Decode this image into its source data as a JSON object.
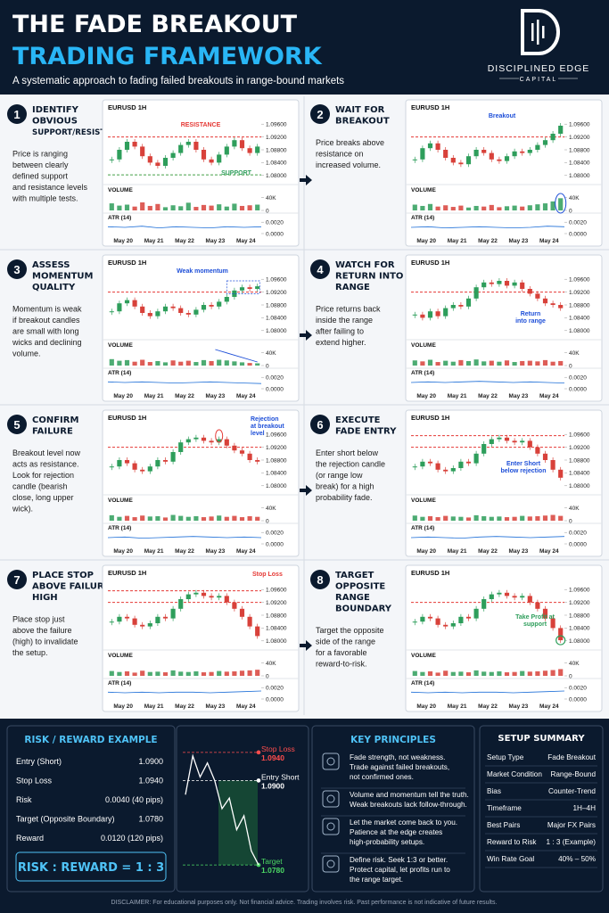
{
  "header": {
    "title_line1": "THE FADE BREAKOUT",
    "title_line2": "TRADING FRAMEWORK",
    "subtitle": "A systematic approach to fading failed breakouts in range-bound markets",
    "logo_name": "DISCIPLINED EDGE",
    "logo_sub": "CAPITAL"
  },
  "chart_axes": {
    "symbol": "EURUSD 1H",
    "price_ylim": [
      1.078,
      1.098
    ],
    "price_ticks": [
      {
        "value": 1.096,
        "label": "1.09600"
      },
      {
        "value": 1.092,
        "label": "1.09200"
      },
      {
        "value": 1.088,
        "label": "1.08800"
      },
      {
        "value": 1.084,
        "label": "1.08400"
      },
      {
        "value": 1.08,
        "label": "1.08000"
      }
    ],
    "volume_label": "VOLUME",
    "volume_ylim": [
      0,
      50000
    ],
    "volume_ticks": [
      {
        "value": 40000,
        "label": "40K"
      },
      0
    ],
    "atr_label": "ATR (14)",
    "atr_ylim": [
      0,
      0.0025
    ],
    "atr_ticks": [
      {
        "value": 0.002,
        "label": "0.0020"
      },
      {
        "value": 0,
        "label": "0.0000"
      }
    ],
    "x_labels": [
      "May 20",
      "May 21",
      "May 22",
      "May 23",
      "May 24"
    ],
    "up_color": "#2e9e5b",
    "down_color": "#d8413a"
  },
  "steps": [
    {
      "number": 1,
      "title": [
        "IDENTIFY",
        "OBVIOUS",
        "SUPPORT/RESISTANCE"
      ],
      "text": [
        "Price is ranging",
        "between clearly",
        "defined support",
        "and resistance levels",
        "with multiple tests."
      ],
      "chart": {
        "type": "candlestick",
        "closes": [
          1.085,
          1.088,
          1.0905,
          1.089,
          1.086,
          1.084,
          1.083,
          1.0855,
          1.087,
          1.0895,
          1.0905,
          1.088,
          1.085,
          1.084,
          1.0865,
          1.089,
          1.091,
          1.0885,
          1.087,
          1.089
        ],
        "volume": [
          22000,
          15000,
          18000,
          12000,
          25000,
          14000,
          20000,
          10000,
          16000,
          13000,
          24000,
          11000,
          17000,
          15000,
          19000,
          12000,
          21000,
          14000,
          16000,
          18000
        ],
        "atr": [
          0.0012,
          0.0011,
          0.0013,
          0.001,
          0.0012,
          0.0011,
          0.001,
          0.0012,
          0.0011,
          0.0012
        ],
        "levels": [
          {
            "value": 1.092,
            "color": "#e53935"
          },
          {
            "value": 1.0802,
            "color": "#43a047"
          }
        ],
        "annotations": [
          {
            "text": [
              "RESISTANCE"
            ],
            "color": "#e53935"
          },
          {
            "text": [
              "SUPPORT"
            ],
            "color": "#2e9e5b"
          }
        ]
      }
    },
    {
      "number": 2,
      "title": [
        "WAIT FOR",
        "BREAKOUT"
      ],
      "text": [
        "Price breaks above",
        "resistance on",
        "increased volume."
      ],
      "chart": {
        "type": "candlestick",
        "closes": [
          1.085,
          1.0885,
          1.09,
          1.088,
          1.0855,
          1.084,
          1.0835,
          1.086,
          1.088,
          1.087,
          1.085,
          1.0845,
          1.086,
          1.0875,
          1.087,
          1.088,
          1.0895,
          1.091,
          1.093,
          1.0955
        ],
        "volume": [
          18000,
          14000,
          20000,
          12000,
          16000,
          11000,
          15000,
          9000,
          14000,
          12000,
          17000,
          10000,
          13000,
          15000,
          12000,
          16000,
          19000,
          22000,
          28000,
          38000
        ],
        "atr": [
          0.0011,
          0.0012,
          0.001,
          0.0011,
          0.0012,
          0.0011,
          0.001,
          0.0011,
          0.0013,
          0.0012
        ],
        "levels": [
          {
            "value": 1.092,
            "color": "#e53935"
          }
        ],
        "annotations": [
          {
            "text": [
              "Breakout"
            ],
            "color": "#1e4fd8"
          }
        ]
      }
    },
    {
      "number": 3,
      "title": [
        "ASSESS",
        "MOMENTUM",
        "QUALITY"
      ],
      "text": [
        "Momentum is weak",
        "if breakout candles",
        "are small with long",
        "wicks and declining",
        "volume."
      ],
      "chart": {
        "type": "candlestick",
        "closes": [
          1.086,
          1.0885,
          1.0895,
          1.0875,
          1.0855,
          1.0845,
          1.086,
          1.0875,
          1.087,
          1.0855,
          1.085,
          1.0865,
          1.088,
          1.0875,
          1.089,
          1.0905,
          1.0925,
          1.0935,
          1.093,
          1.0938
        ],
        "volume": [
          20000,
          15000,
          17000,
          12000,
          18000,
          11000,
          14000,
          10000,
          16000,
          12000,
          15000,
          11000,
          17000,
          14000,
          18000,
          16000,
          13000,
          10000,
          8000,
          7000
        ],
        "atr": [
          0.0012,
          0.0011,
          0.0012,
          0.0011,
          0.001,
          0.0011,
          0.0012,
          0.0011,
          0.001,
          0.0009
        ],
        "levels": [
          {
            "value": 1.092,
            "color": "#e53935"
          }
        ],
        "annotations": [
          {
            "text": [
              "Weak momentum"
            ],
            "color": "#1e4fd8"
          }
        ]
      }
    },
    {
      "number": 4,
      "title": [
        "WATCH FOR",
        "RETURN INTO",
        "RANGE"
      ],
      "text": [
        "Price returns back",
        "inside the range",
        "after failing to",
        "extend higher."
      ],
      "chart": {
        "type": "candlestick",
        "closes": [
          1.085,
          1.084,
          1.086,
          1.0845,
          1.087,
          1.088,
          1.0875,
          1.09,
          1.0935,
          1.095,
          1.0945,
          1.0955,
          1.094,
          1.095,
          1.093,
          1.0915,
          1.09,
          1.0885,
          1.088,
          1.087
        ],
        "volume": [
          16000,
          13000,
          18000,
          11000,
          15000,
          12000,
          17000,
          14000,
          19000,
          13000,
          15000,
          12000,
          16000,
          11000,
          14000,
          15000,
          13000,
          17000,
          12000,
          14000
        ],
        "atr": [
          0.0011,
          0.0012,
          0.0011,
          0.0012,
          0.0013,
          0.0012,
          0.0011,
          0.0012,
          0.0011,
          0.001
        ],
        "levels": [
          {
            "value": 1.092,
            "color": "#e53935"
          }
        ],
        "annotations": [
          {
            "text": [
              "Return",
              "into range"
            ],
            "color": "#1e4fd8"
          }
        ]
      }
    },
    {
      "number": 5,
      "title": [
        "CONFIRM",
        "FAILURE"
      ],
      "text": [
        "Breakout level now",
        "acts as resistance.",
        "Look for rejection",
        "candle (bearish",
        "close, long upper",
        "wick)."
      ],
      "chart": {
        "type": "candlestick",
        "closes": [
          1.086,
          1.088,
          1.087,
          1.085,
          1.0845,
          1.086,
          1.088,
          1.0875,
          1.0905,
          1.0935,
          1.0945,
          1.095,
          1.094,
          1.0935,
          1.0945,
          1.0925,
          1.091,
          1.09,
          1.088,
          1.0875
        ],
        "volume": [
          17000,
          12000,
          15000,
          11000,
          16000,
          13000,
          14000,
          10000,
          18000,
          15000,
          12000,
          14000,
          11000,
          13000,
          16000,
          12000,
          15000,
          11000,
          14000,
          12000
        ],
        "atr": [
          0.0011,
          0.0012,
          0.001,
          0.0011,
          0.0012,
          0.0013,
          0.0012,
          0.0011,
          0.0012,
          0.0011
        ],
        "levels": [
          {
            "value": 1.092,
            "color": "#e53935"
          }
        ],
        "annotations": [
          {
            "text": [
              "Rejection",
              "at breakout",
              "level"
            ],
            "color": "#1e4fd8"
          }
        ]
      }
    },
    {
      "number": 6,
      "title": [
        "EXECUTE",
        "FADE ENTRY"
      ],
      "text": [
        "Enter short below",
        "the rejection candle",
        "(or range low",
        "break) for a high",
        "probability fade."
      ],
      "chart": {
        "type": "candlestick",
        "closes": [
          1.086,
          1.0875,
          1.087,
          1.085,
          1.0845,
          1.0855,
          1.0875,
          1.087,
          1.09,
          1.093,
          1.0945,
          1.095,
          1.094,
          1.0935,
          1.094,
          1.092,
          1.09,
          1.088,
          1.085,
          1.0825
        ],
        "volume": [
          16000,
          12000,
          14000,
          11000,
          15000,
          13000,
          12000,
          10000,
          17000,
          14000,
          12000,
          13000,
          11000,
          12000,
          15000,
          13000,
          14000,
          16000,
          18000,
          15000
        ],
        "atr": [
          0.0011,
          0.0012,
          0.0011,
          0.001,
          0.0012,
          0.0013,
          0.0012,
          0.0011,
          0.0012,
          0.0013
        ],
        "levels": [
          {
            "value": 1.092,
            "color": "#e53935"
          },
          {
            "value": 1.0956,
            "color": "#e53935"
          }
        ],
        "annotations": [
          {
            "text": [
              "Enter Short",
              "below rejection"
            ],
            "color": "#1e4fd8"
          }
        ]
      }
    },
    {
      "number": 7,
      "title": [
        "PLACE STOP",
        "ABOVE FAILURE",
        "HIGH"
      ],
      "text": [
        "Place stop just",
        "above the failure",
        "(high) to invalidate",
        "the setup."
      ],
      "chart": {
        "type": "candlestick",
        "closes": [
          1.086,
          1.0875,
          1.087,
          1.085,
          1.0845,
          1.0855,
          1.0875,
          1.087,
          1.09,
          1.093,
          1.0945,
          1.095,
          1.094,
          1.0935,
          1.094,
          1.092,
          1.09,
          1.0875,
          1.0845,
          1.0815
        ],
        "volume": [
          15000,
          12000,
          14000,
          10000,
          16000,
          12000,
          13000,
          11000,
          17000,
          13000,
          12000,
          14000,
          11000,
          12000,
          15000,
          13000,
          14000,
          16000,
          17000,
          19000
        ],
        "atr": [
          0.0012,
          0.0011,
          0.0012,
          0.0011,
          0.0012,
          0.0012,
          0.0011,
          0.0012,
          0.0013,
          0.0014
        ],
        "levels": [
          {
            "value": 1.092,
            "color": "#e53935"
          },
          {
            "value": 1.0956,
            "color": "#e53935"
          }
        ],
        "annotations": [
          {
            "text": [
              "Stop Loss"
            ],
            "color": "#e53935"
          }
        ]
      }
    },
    {
      "number": 8,
      "title": [
        "TARGET",
        "OPPOSITE",
        "RANGE",
        "BOUNDARY"
      ],
      "text": [
        "Target the opposite",
        "side of the range",
        "for a favorable",
        "reward-to-risk."
      ],
      "chart": {
        "type": "candlestick",
        "closes": [
          1.086,
          1.0875,
          1.087,
          1.085,
          1.0845,
          1.0855,
          1.0875,
          1.087,
          1.09,
          1.093,
          1.0945,
          1.095,
          1.094,
          1.0935,
          1.094,
          1.092,
          1.09,
          1.087,
          1.084,
          1.0802
        ],
        "volume": [
          15000,
          12000,
          14000,
          10000,
          16000,
          12000,
          13000,
          11000,
          17000,
          13000,
          12000,
          14000,
          11000,
          12000,
          15000,
          13000,
          14000,
          16000,
          18000,
          21000
        ],
        "atr": [
          0.0012,
          0.0011,
          0.0012,
          0.0011,
          0.0012,
          0.0012,
          0.0011,
          0.0012,
          0.0013,
          0.0014
        ],
        "levels": [
          {
            "value": 1.092,
            "color": "#e53935"
          }
        ],
        "annotations": [
          {
            "text": [
              "Take Profit at",
              "support"
            ],
            "color": "#2e9e5b"
          }
        ]
      }
    }
  ],
  "risk_reward": {
    "title": "RISK / REWARD EXAMPLE",
    "rows": [
      [
        "Entry (Short)",
        "1.0900"
      ],
      [
        "Stop Loss",
        "1.0940"
      ],
      [
        "Risk",
        "0.0040 (40 pips)"
      ],
      [
        "Target (Opposite Boundary)",
        "1.0780"
      ],
      [
        "Reward",
        "0.0120 (120 pips)"
      ]
    ],
    "ratio": "RISK : REWARD =  1  :  3"
  },
  "trade_chart": {
    "type": "line",
    "ylim": [
      1.077,
      1.0955
    ],
    "path": [
      1.088,
      1.0935,
      1.0905,
      1.0925,
      1.09,
      1.086,
      1.0875,
      1.083,
      1.085,
      1.08,
      1.078
    ],
    "levels": [
      {
        "name": "Stop Loss",
        "value": 1.094,
        "label": "1.0940",
        "color": "#ff4d4d"
      },
      {
        "name": "Entry Short",
        "value": 1.09,
        "label": "1.0900",
        "color": "#ffffff"
      },
      {
        "name": "Target",
        "value": 1.078,
        "label": "1.0780",
        "color": "#4cd964"
      }
    ]
  },
  "key_principles": {
    "title": "KEY PRINCIPLES",
    "items": [
      [
        "Fade strength, not weakness.",
        "Trade against failed breakouts,",
        "not confirmed ones."
      ],
      [
        "Volume and momentum tell the truth.",
        "Weak breakouts lack follow-through."
      ],
      [
        "Let the market come back to you.",
        "Patience at the edge creates",
        "high-probability setups."
      ],
      [
        "Define risk. Seek 1:3 or better.",
        "Protect capital, let profits run to",
        "the range target."
      ]
    ]
  },
  "setup_summary": {
    "title": "SETUP SUMMARY",
    "rows": [
      [
        "Setup Type",
        "Fade Breakout"
      ],
      [
        "Market Condition",
        "Range-Bound"
      ],
      [
        "Bias",
        "Counter-Trend"
      ],
      [
        "Timeframe",
        "1H–4H"
      ],
      [
        "Best Pairs",
        "Major FX Pairs"
      ],
      [
        "Reward to Risk",
        "1 : 3 (Example)"
      ],
      [
        "Win Rate Goal",
        "40% – 50%"
      ]
    ]
  },
  "disclaimer": "DISCLAIMER: For educational purposes only. Not financial advice. Trading involves risk. Past performance is not indicative of future results."
}
